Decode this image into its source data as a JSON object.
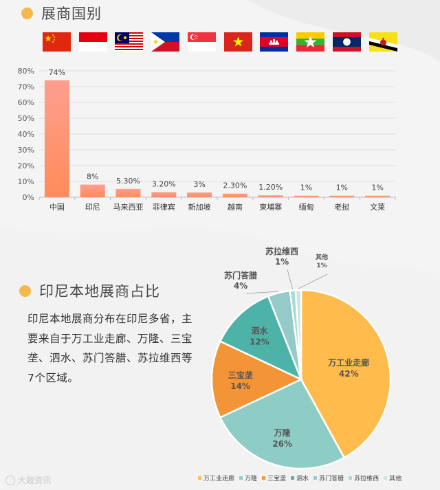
{
  "section1": {
    "title": "展商国别"
  },
  "section2": {
    "title": "印尼本地展商占比"
  },
  "paragraph": "印尼本地展商分布在印尼多省，主要来自于万工业走廊、万隆、三宝垄、泗水、苏门答腊、苏拉维西等7个区域。",
  "flags": [
    "china-flag-icon",
    "indonesia-flag-icon",
    "malaysia-flag-icon",
    "philippines-flag-icon",
    "singapore-flag-icon",
    "vietnam-flag-icon",
    "cambodia-flag-icon",
    "myanmar-flag-icon",
    "laos-flag-icon",
    "brunei-flag-icon"
  ],
  "watermark": "大跛资讯",
  "colors": {
    "bar_top": "#ff9e8f",
    "bar_bottom": "#ff8c5a",
    "accent": "#f5b94b"
  },
  "chart_data": [
    {
      "type": "bar",
      "categories": [
        "中国",
        "印尼",
        "马来西亚",
        "菲律宾",
        "新加坡",
        "越南",
        "柬埔寨",
        "缅甸",
        "老挝",
        "文莱"
      ],
      "values": [
        74,
        8,
        5.3,
        3.2,
        3,
        2.3,
        1.2,
        1,
        1,
        1
      ],
      "data_labels": [
        "74%",
        "8%",
        "5.30%",
        "3.20%",
        "3%",
        "2.30%",
        "1.20%",
        "1%",
        "1%",
        "1%"
      ],
      "ylim": [
        0,
        80
      ],
      "yticks": [
        "0%",
        "10%",
        "20%",
        "30%",
        "40%",
        "50%",
        "60%",
        "70%",
        "80%"
      ],
      "grid": true
    },
    {
      "type": "pie",
      "categories": [
        "万工业走廊",
        "万隆",
        "三宝垄",
        "泗水",
        "苏门答腊",
        "苏拉维西",
        "其他"
      ],
      "values": [
        42,
        26,
        14,
        12,
        4,
        1,
        1
      ],
      "labels": [
        "42%",
        "26%",
        "14%",
        "12%",
        "4%",
        "1%",
        "1%"
      ],
      "colors": [
        "#ffbc4c",
        "#8ecdc6",
        "#f39437",
        "#4db3a9",
        "#94cac7",
        "#a9d9d6",
        "#c7e6e3"
      ],
      "legend": "bottom"
    }
  ]
}
